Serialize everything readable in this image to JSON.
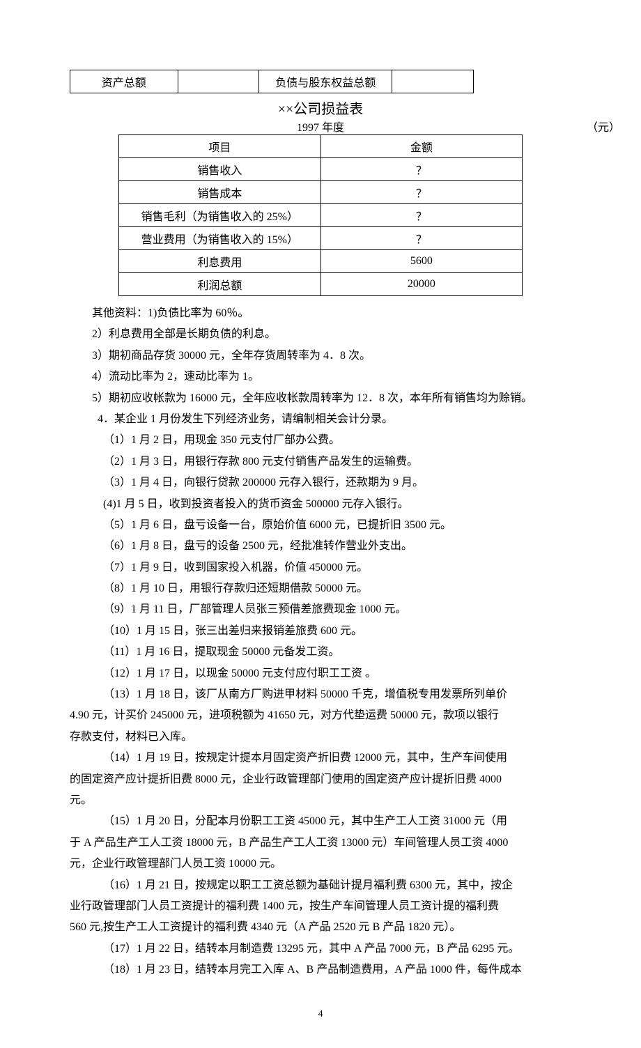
{
  "table1": {
    "left_label": "资产总额",
    "left_value": "",
    "right_label": "负债与股东权益总额",
    "right_value": ""
  },
  "title": "××公司损益表",
  "year": "1997 年度",
  "unit": "（元）",
  "table2": {
    "header_left": "项目",
    "header_right": "金额",
    "rows": [
      {
        "item": "销售收入",
        "amount": "？"
      },
      {
        "item": "销售成本",
        "amount": "？"
      },
      {
        "item": "销售毛利（为销售收入的 25%）",
        "amount": "？"
      },
      {
        "item": "营业费用（为销售收入的 15%）",
        "amount": "？"
      },
      {
        "item": "利息费用",
        "amount": "5600"
      },
      {
        "item": "利润总额",
        "amount": "20000"
      }
    ]
  },
  "paras": {
    "p0": "其他资料：1)负债比率为 60％。",
    "p1": "2）利息费用全部是长期负债的利息。",
    "p2": "3）期初商品存货 30000 元，全年存货周转率为 4．8 次。",
    "p3": "4）流动比率为 2，速动比率为 1。",
    "p4": "5）期初应收帐款为 16000 元，全年应收帐款周转率为 12．8 次，本年所有销售均为赊销。",
    "p5": "4．某企业 1 月份发生下列经济业务，请编制相关会计分录。",
    "p6": "（1）1 月 2 日，用现金 350 元支付厂部办公费。",
    "p7": "（2）1 月 3 日，用银行存款 800 元支付销售产品发生的运输费。",
    "p8": "（3）1 月 4 日，向银行贷款 200000 元存入银行，还款期为 9 月。",
    "p9": "(4)1 月 5 日，收到投资者投入的货币资金 500000 元存入银行。",
    "p10": "（5）1 月 6 日，盘亏设备一台，原始价值 6000 元，已提折旧 3500 元。",
    "p11": "（6）1 月 8 日，盘亏的设备 2500 元，经批准转作营业外支出。",
    "p12": "（7）1 月 9 日，收到国家投入机器，价值 450000 元。",
    "p13": "（8）1 月 10 日，用银行存款归还短期借款 50000 元。",
    "p14": "（9）1 月 11 日，厂部管理人员张三预借差旅费现金 1000 元。",
    "p15": "（10）1 月 15 日，张三出差归来报销差旅费 600 元。",
    "p16": "（11）1 月 16 日，提取现金 50000 元备发工资。",
    "p17": "（12）1 月 17 日，以现金 50000 元支付应付职工工资 。",
    "p18a": "（13）1 月 18 日，该厂从南方厂购进甲材料 50000 千克，增值税专用发票所列单价",
    "p18b": "4.90 元，计买价 245000 元，进项税额为 41650 元，对方代垫运费 50000 元，款项以银行",
    "p18c": "存款支付，材料已入库。",
    "p19a": "（14）1 月 19 日，按规定计提本月固定资产折旧费 12000 元，其中，生产车间使用",
    "p19b": "的固定资产应计提折旧费 8000 元，企业行政管理部门使用的固定资产应计提折旧费 4000",
    "p19c": "元。",
    "p20a": "（15）1 月 20 日，分配本月份职工工资 45000 元，其中生产工人工资 31000 元（用",
    "p20b": "于 A 产品生产工人工资 18000 元，B 产品生产工人工资 13000 元）车间管理人员工资 4000",
    "p20c": "元，企业行政管理部门人员工资 10000 元。",
    "p21a": "（16）1 月 21 日，按规定以职工工资总额为基础计提月福利费 6300 元，其中，按企",
    "p21b": "业行政管理部门人员工资提计的福利费 1400 元，按生产车间管理人员工资计提的福利费",
    "p21c": "560 元,按生产工人工资提计的福利费 4340 元（A 产品 2520 元 B 产品 1820 元）。",
    "p22": "（17）1 月 22 日，结转本月制造费 13295 元，其中 A 产品 7000 元，B 产品 6295 元。",
    "p23": "（18）1 月 23 日，结转本月完工入库 A、B 产品制造费用，A 产品 1000 件，每件成本"
  },
  "page_number": "4"
}
